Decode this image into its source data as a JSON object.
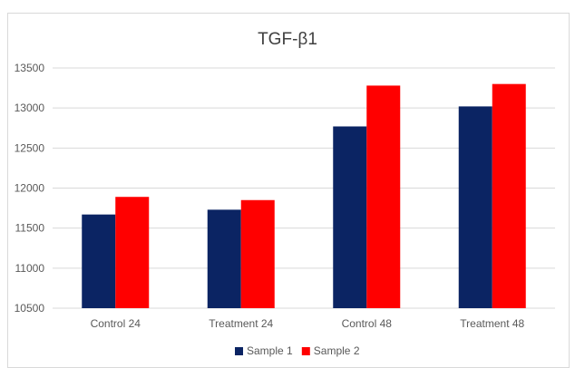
{
  "chart_data": {
    "type": "bar",
    "title": "TGF-β1",
    "xlabel": "",
    "ylabel": "",
    "categories": [
      "Control 24",
      "Treatment 24",
      "Control 48",
      "Treatment 48"
    ],
    "series": [
      {
        "name": "Sample 1",
        "color": "#0b2463",
        "values": [
          11670,
          11730,
          12770,
          13020
        ]
      },
      {
        "name": "Sample 2",
        "color": "#ff0000",
        "values": [
          11890,
          11850,
          13280,
          13300
        ]
      }
    ],
    "ylim": [
      10500,
      13500
    ],
    "yticks": [
      "10500",
      "11000",
      "11500",
      "12000",
      "12500",
      "13000",
      "13500"
    ],
    "grid": true,
    "legend_position": "bottom"
  }
}
